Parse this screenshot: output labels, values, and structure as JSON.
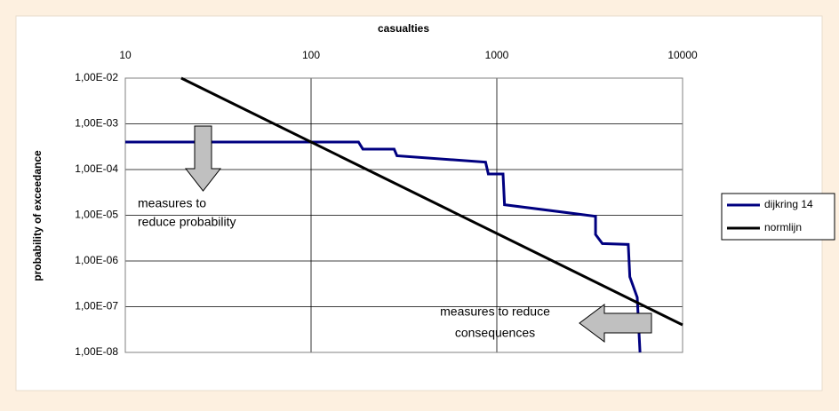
{
  "chart_data": {
    "type": "line",
    "x_label": "casualties",
    "y_label": "probability of exceedance",
    "log_x": true,
    "log_y": true,
    "grid": true,
    "legend": "right",
    "xlim": [
      10,
      10000
    ],
    "xticks": [
      10,
      100,
      1000,
      10000
    ],
    "ylim": [
      1e-08,
      0.01
    ],
    "yticks": [
      {
        "value": 1e-08,
        "label": "1,00E-08"
      },
      {
        "value": 1e-07,
        "label": "1,00E-07"
      },
      {
        "value": 1e-06,
        "label": "1,00E-06"
      },
      {
        "value": 1e-05,
        "label": "1,00E-05"
      },
      {
        "value": 0.0001,
        "label": "1,00E-04"
      },
      {
        "value": 0.001,
        "label": "1,00E-03"
      },
      {
        "value": 0.01,
        "label": "1,00E-02"
      }
    ],
    "series": [
      {
        "name": "dijkring 14",
        "color": "#000080",
        "x": [
          10,
          180,
          190,
          280,
          290,
          870,
          900,
          1080,
          1100,
          3400,
          3400,
          3700,
          5100,
          5200,
          5700,
          5900
        ],
        "values": [
          0.0004,
          0.0004,
          0.00028,
          0.00028,
          0.0002,
          0.000145,
          8e-05,
          8e-05,
          1.7e-05,
          9.5e-06,
          3.8e-06,
          2.4e-06,
          2.3e-06,
          4.5e-07,
          1.6e-07,
          1e-08
        ]
      },
      {
        "name": "normlijn",
        "color": "#000000",
        "x": [
          20,
          10000
        ],
        "values": [
          0.01,
          4e-08
        ]
      }
    ],
    "annotations": [
      {
        "lines": [
          "measures to",
          "reduce probability"
        ]
      },
      {
        "lines": [
          "measures to reduce",
          "consequences"
        ]
      }
    ]
  }
}
